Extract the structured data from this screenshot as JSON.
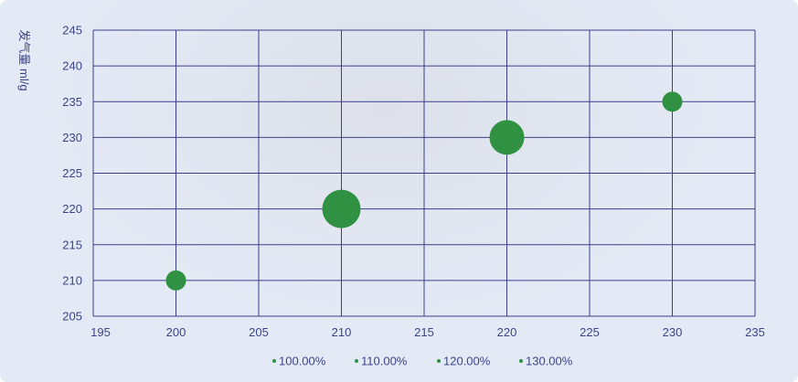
{
  "chart_data": {
    "type": "scatter",
    "title": "",
    "xlabel": "",
    "ylabel": "发气量 ml/g",
    "xlim": [
      195,
      235
    ],
    "ylim": [
      205,
      245
    ],
    "x_ticks": [
      195,
      200,
      205,
      210,
      215,
      220,
      225,
      230,
      235
    ],
    "y_ticks": [
      205,
      210,
      215,
      220,
      225,
      230,
      235,
      240,
      245
    ],
    "grid": true,
    "legend_position": "bottom",
    "legend": [
      "100.00%",
      "110.00%",
      "120.00%",
      "130.00%"
    ],
    "points": [
      {
        "x": 200,
        "y": 210,
        "size": 11
      },
      {
        "x": 210,
        "y": 220,
        "size": 21
      },
      {
        "x": 220,
        "y": 230,
        "size": 19
      },
      {
        "x": 230,
        "y": 235,
        "size": 11
      }
    ],
    "colors": {
      "point": "#2f9141",
      "grid": "#3a3f8c",
      "text": "#3c4488"
    }
  }
}
